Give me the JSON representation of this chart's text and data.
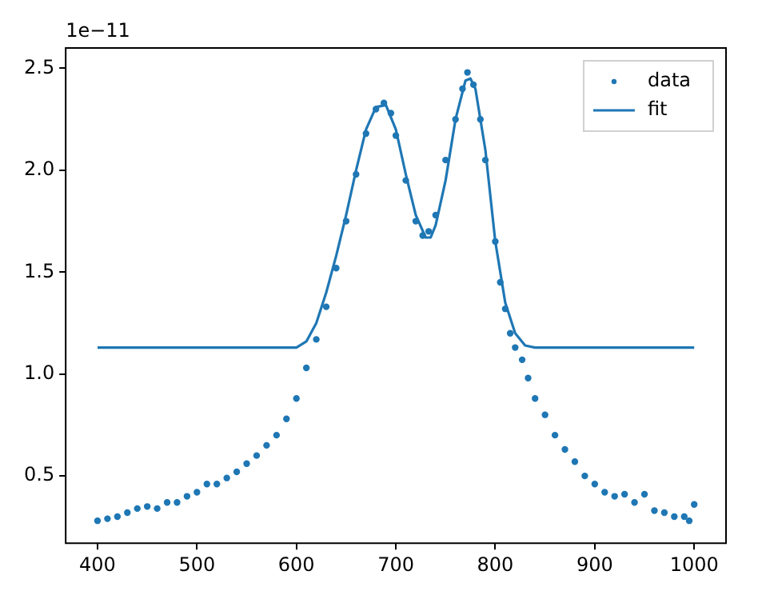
{
  "chart_data": {
    "type": "scatter",
    "xlim": [
      368,
      1032
    ],
    "ylim": [
      0.17,
      2.6
    ],
    "xticks": [
      400,
      500,
      600,
      700,
      800,
      900,
      1000
    ],
    "yticks": [
      {
        "value": 0.5,
        "label": "0.5"
      },
      {
        "value": 1,
        "label": "1.0"
      },
      {
        "value": 1.5,
        "label": "1.5"
      },
      {
        "value": 2,
        "label": "2.0"
      },
      {
        "value": 2.5,
        "label": "2.5"
      }
    ],
    "annotations": [
      "1e−11"
    ],
    "legend": "top right",
    "grid": false,
    "series": [
      {
        "name": "data",
        "marker": "circle",
        "color": "#1f77b4",
        "x": [
          400,
          410,
          420,
          430,
          440,
          450,
          460,
          470,
          480,
          490,
          500,
          510,
          520,
          530,
          540,
          550,
          560,
          570,
          580,
          590,
          600,
          610,
          620,
          630,
          640,
          650,
          660,
          670,
          680,
          688,
          695,
          700,
          710,
          720,
          727,
          733,
          740,
          750,
          760,
          767,
          772,
          778,
          785,
          790,
          800,
          805,
          810,
          815,
          820,
          827,
          833,
          840,
          850,
          860,
          870,
          880,
          890,
          900,
          910,
          920,
          930,
          940,
          950,
          960,
          970,
          980,
          990,
          995,
          1000
        ],
        "values": [
          0.28,
          0.29,
          0.3,
          0.32,
          0.34,
          0.35,
          0.34,
          0.37,
          0.37,
          0.4,
          0.42,
          0.46,
          0.46,
          0.49,
          0.52,
          0.56,
          0.6,
          0.65,
          0.7,
          0.78,
          0.88,
          1.03,
          1.17,
          1.33,
          1.52,
          1.75,
          1.98,
          2.18,
          2.3,
          2.33,
          2.28,
          2.17,
          1.95,
          1.75,
          1.68,
          1.7,
          1.78,
          2.05,
          2.25,
          2.4,
          2.48,
          2.42,
          2.25,
          2.05,
          1.65,
          1.45,
          1.32,
          1.2,
          1.13,
          1.07,
          0.98,
          0.88,
          0.8,
          0.7,
          0.63,
          0.57,
          0.5,
          0.46,
          0.42,
          0.4,
          0.41,
          0.37,
          0.41,
          0.33,
          0.32,
          0.3,
          0.3,
          0.28,
          0.36
        ]
      },
      {
        "name": "fit",
        "type": "line",
        "marker": "none",
        "line_style": "solid",
        "color": "#1f77b4",
        "x": [
          400,
          500,
          600,
          610,
          620,
          630,
          640,
          650,
          660,
          670,
          680,
          690,
          700,
          710,
          720,
          730,
          735,
          740,
          750,
          760,
          770,
          775,
          780,
          790,
          800,
          810,
          820,
          830,
          840,
          900,
          1000
        ],
        "values": [
          1.13,
          1.13,
          1.13,
          1.16,
          1.25,
          1.4,
          1.58,
          1.78,
          2.0,
          2.2,
          2.31,
          2.32,
          2.2,
          1.98,
          1.78,
          1.67,
          1.67,
          1.73,
          1.95,
          2.25,
          2.44,
          2.45,
          2.4,
          2.1,
          1.65,
          1.35,
          1.2,
          1.14,
          1.13,
          1.13,
          1.13
        ]
      }
    ]
  }
}
